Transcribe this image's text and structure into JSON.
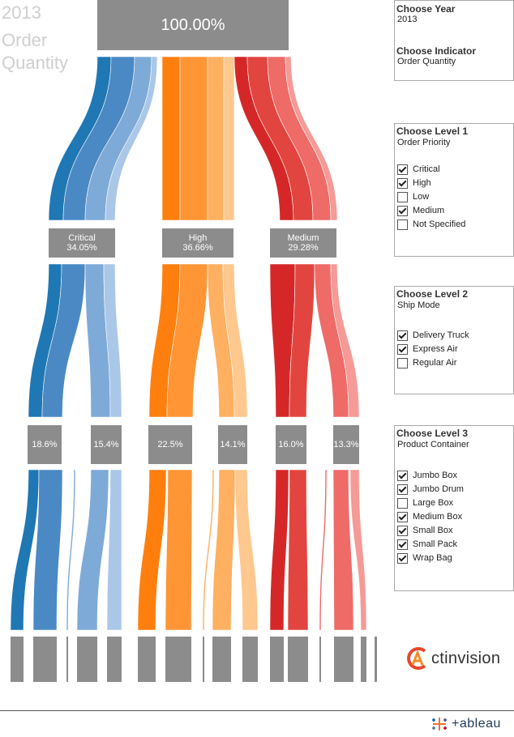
{
  "dashboard": {
    "title_year": "2013",
    "title_indicator_line1": "Order",
    "title_indicator_line2": "Quantity",
    "total_label": "100.00%"
  },
  "level1_nodes": [
    {
      "name": "Critical",
      "share": "34.05%",
      "color": "#2b78b6"
    },
    {
      "name": "High",
      "share": "36.66%",
      "color": "#ff7f0e"
    },
    {
      "name": "Medium",
      "share": "29.28%",
      "color": "#d62728"
    }
  ],
  "level2_nodes": [
    {
      "label": "18.6%",
      "parent": "Critical",
      "ship_mode": "Delivery Truck"
    },
    {
      "label": "15.4%",
      "parent": "Critical",
      "ship_mode": "Express Air"
    },
    {
      "label": "22.5%",
      "parent": "High",
      "ship_mode": "Delivery Truck"
    },
    {
      "label": "14.1%",
      "parent": "High",
      "ship_mode": "Express Air"
    },
    {
      "label": "16.0%",
      "parent": "Medium",
      "ship_mode": "Delivery Truck"
    },
    {
      "label": "13.3%",
      "parent": "Medium",
      "ship_mode": "Express Air"
    }
  ],
  "filters": {
    "year": {
      "title": "Choose Year",
      "value": "2013"
    },
    "indicator": {
      "title": "Choose Indicator",
      "value": "Order Quantity"
    },
    "level1": {
      "title": "Choose Level 1",
      "subtitle": "Order Priority",
      "options": [
        {
          "label": "Critical",
          "checked": true
        },
        {
          "label": "High",
          "checked": true
        },
        {
          "label": "Low",
          "checked": false
        },
        {
          "label": "Medium",
          "checked": true
        },
        {
          "label": "Not Specified",
          "checked": false
        }
      ]
    },
    "level2": {
      "title": "Choose Level 2",
      "subtitle": "Ship Mode",
      "options": [
        {
          "label": "Delivery Truck",
          "checked": true
        },
        {
          "label": "Express Air",
          "checked": true
        },
        {
          "label": "Regular Air",
          "checked": false
        }
      ]
    },
    "level3": {
      "title": "Choose Level 3",
      "subtitle": "Product Container",
      "options": [
        {
          "label": "Jumbo Box",
          "checked": true
        },
        {
          "label": "Jumbo Drum",
          "checked": true
        },
        {
          "label": "Large Box",
          "checked": false
        },
        {
          "label": "Medium Box",
          "checked": true
        },
        {
          "label": "Small Box",
          "checked": true
        },
        {
          "label": "Small Pack",
          "checked": true
        },
        {
          "label": "Wrap Bag",
          "checked": true
        }
      ]
    }
  },
  "branding": {
    "company": "ctinvision",
    "company_initial": "A",
    "platform": "+ableau"
  },
  "palette": {
    "blue": [
      "#1f77b4",
      "#4a89c4",
      "#7eaad8",
      "#aac7e8"
    ],
    "orange": [
      "#ff7f0e",
      "#ff9535",
      "#ffb060",
      "#ffc88e"
    ],
    "red": [
      "#d62728",
      "#e2453f",
      "#ee6b68",
      "#f59a96"
    ],
    "box": "#8c8c8c"
  }
}
